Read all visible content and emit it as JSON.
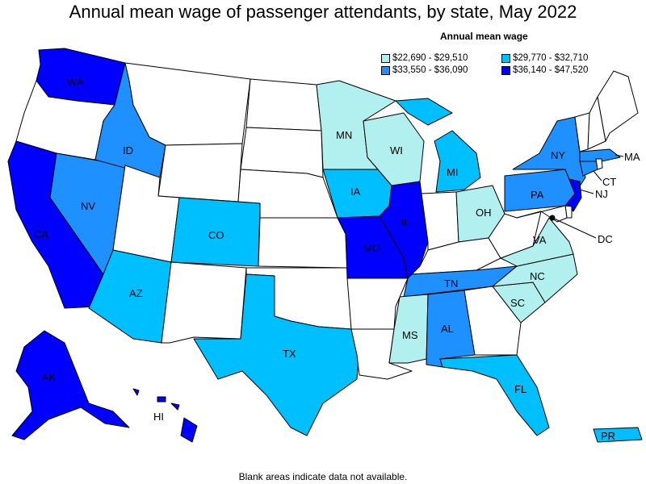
{
  "title": "Annual mean wage of passenger attendants, by state, May 2022",
  "legend": {
    "title": "Annual mean wage",
    "items": [
      {
        "label": "$22,690 - $29,510",
        "color": "#b2efef"
      },
      {
        "label": "$29,770 - $32,710",
        "color": "#00bfff"
      },
      {
        "label": "$33,550 - $36,090",
        "color": "#1e90ff"
      },
      {
        "label": "$36,140 - $47,520",
        "color": "#0000ff"
      }
    ]
  },
  "footnote": "Blank areas indicate data not available.",
  "states": [
    {
      "abbr": "WA",
      "tier": 3
    },
    {
      "abbr": "OR",
      "tier": -1
    },
    {
      "abbr": "CA",
      "tier": 3
    },
    {
      "abbr": "NV",
      "tier": 2
    },
    {
      "abbr": "ID",
      "tier": 2
    },
    {
      "abbr": "MT",
      "tier": -1
    },
    {
      "abbr": "WY",
      "tier": -1
    },
    {
      "abbr": "UT",
      "tier": -1
    },
    {
      "abbr": "AZ",
      "tier": 1
    },
    {
      "abbr": "CO",
      "tier": 1
    },
    {
      "abbr": "NM",
      "tier": -1
    },
    {
      "abbr": "ND",
      "tier": -1
    },
    {
      "abbr": "SD",
      "tier": -1
    },
    {
      "abbr": "NE",
      "tier": -1
    },
    {
      "abbr": "KS",
      "tier": -1
    },
    {
      "abbr": "OK",
      "tier": -1
    },
    {
      "abbr": "TX",
      "tier": 1
    },
    {
      "abbr": "MN",
      "tier": 0
    },
    {
      "abbr": "IA",
      "tier": 1
    },
    {
      "abbr": "MO",
      "tier": 3
    },
    {
      "abbr": "AR",
      "tier": -1
    },
    {
      "abbr": "LA",
      "tier": -1
    },
    {
      "abbr": "WI",
      "tier": 0
    },
    {
      "abbr": "IL",
      "tier": 3
    },
    {
      "abbr": "MI",
      "tier": 1
    },
    {
      "abbr": "IN",
      "tier": -1
    },
    {
      "abbr": "OH",
      "tier": 0
    },
    {
      "abbr": "KY",
      "tier": -1
    },
    {
      "abbr": "TN",
      "tier": 2
    },
    {
      "abbr": "MS",
      "tier": 0
    },
    {
      "abbr": "AL",
      "tier": 2
    },
    {
      "abbr": "GA",
      "tier": -1
    },
    {
      "abbr": "FL",
      "tier": 1
    },
    {
      "abbr": "SC",
      "tier": 0
    },
    {
      "abbr": "NC",
      "tier": 0
    },
    {
      "abbr": "VA",
      "tier": 0
    },
    {
      "abbr": "WV",
      "tier": -1
    },
    {
      "abbr": "PA",
      "tier": 2
    },
    {
      "abbr": "NY",
      "tier": 2
    },
    {
      "abbr": "NJ",
      "tier": 3
    },
    {
      "abbr": "CT",
      "tier": 2
    },
    {
      "abbr": "MA",
      "tier": 2
    },
    {
      "abbr": "DC",
      "tier": 3
    },
    {
      "abbr": "AK",
      "tier": 3
    },
    {
      "abbr": "HI",
      "tier": 3
    },
    {
      "abbr": "PR",
      "tier": 1
    }
  ]
}
